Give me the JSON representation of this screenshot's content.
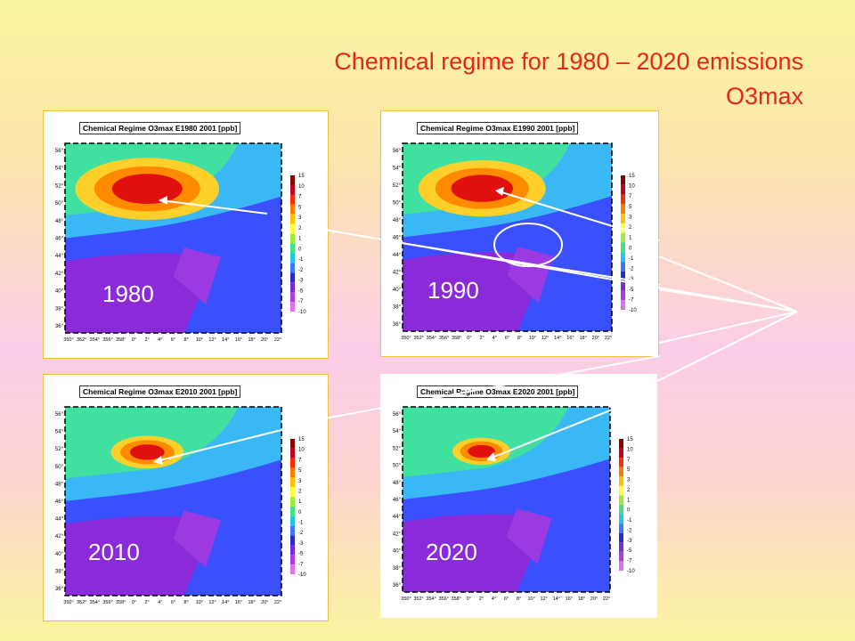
{
  "slide": {
    "title_line1": "Chemical regime for 1980 – 2020 emissions",
    "title_line2": "O3max"
  },
  "panels": [
    {
      "id": "p1980",
      "map_title": "Chemical Regime O3max E1980 2001 [ppb]",
      "year": "1980"
    },
    {
      "id": "p1990",
      "map_title": "Chemical Regime O3max E1990 2001 [ppb]",
      "year": "1990"
    },
    {
      "id": "p2010",
      "map_title": "Chemical Regime O3max E2010 2001 [ppb]",
      "year": "2010"
    },
    {
      "id": "p2020",
      "map_title": "Chemical Regime O3max E2020 2001 [ppb]",
      "year": "2020"
    }
  ],
  "lat_ticks": [
    "56°",
    "54°",
    "52°",
    "50°",
    "48°",
    "46°",
    "44°",
    "42°",
    "40°",
    "38°",
    "36°"
  ],
  "lon_ticks": [
    "350°",
    "352°",
    "354°",
    "356°",
    "358°",
    "0°",
    "2°",
    "4°",
    "6°",
    "8°",
    "10°",
    "12°",
    "14°",
    "16°",
    "18°",
    "20°",
    "22°"
  ],
  "colorbar_ticks": [
    "15",
    "10",
    "7",
    "5",
    "3",
    "2",
    "1",
    "0",
    "-1",
    "-2",
    "-3",
    "-5",
    "-7",
    "-10"
  ],
  "colorbar_colors": [
    "#8b0000",
    "#c8001e",
    "#ff2a00",
    "#ff7a00",
    "#ffc000",
    "#ffff40",
    "#9eed3a",
    "#3fe08a",
    "#20c8e6",
    "#3a78ff",
    "#2a2acc",
    "#7a2adc",
    "#b03ae0",
    "#e070f0"
  ],
  "colors": {
    "title": "#e4261c",
    "panel_border": "#f0c04a",
    "year_label": "#ffffff",
    "line": "#ffffff"
  }
}
